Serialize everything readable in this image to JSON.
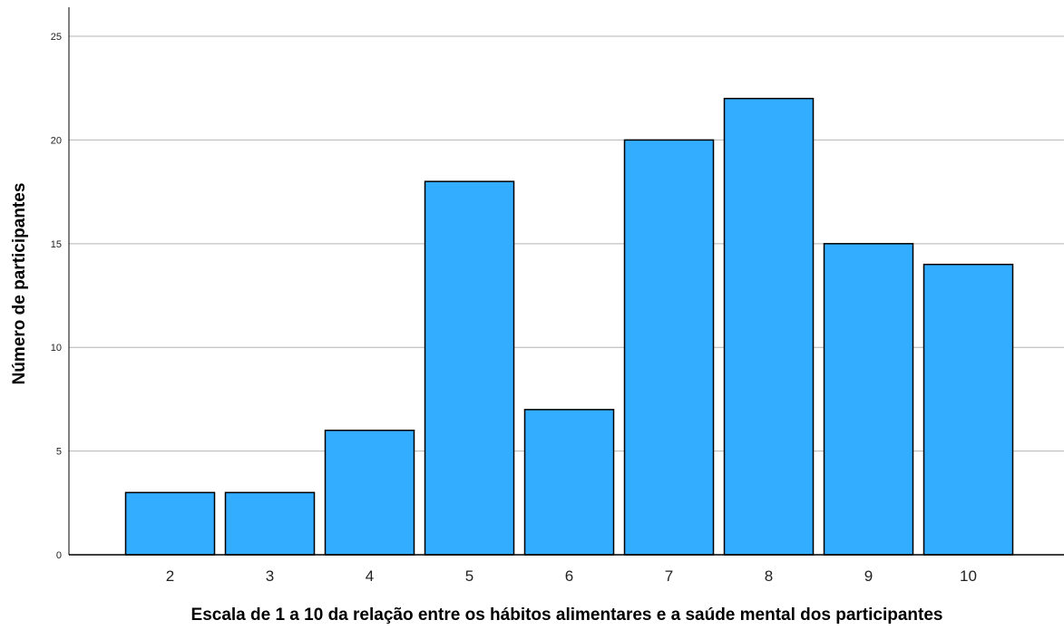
{
  "chart_data": {
    "type": "bar",
    "categories": [
      "2",
      "3",
      "4",
      "5",
      "6",
      "7",
      "8",
      "9",
      "10"
    ],
    "values": [
      3,
      3,
      6,
      18,
      7,
      20,
      22,
      15,
      14
    ],
    "xlabel": "Escala de 1 a 10 da relação entre os hábitos alimentares e a saúde mental dos participantes",
    "ylabel": "Número de participantes",
    "ylim": [
      0,
      25
    ],
    "yticks": [
      0,
      5,
      10,
      15,
      20,
      25
    ],
    "grid": true,
    "bar_color": "#33adff",
    "bar_stroke": "#000000",
    "grid_color": "#b4b4b4"
  }
}
